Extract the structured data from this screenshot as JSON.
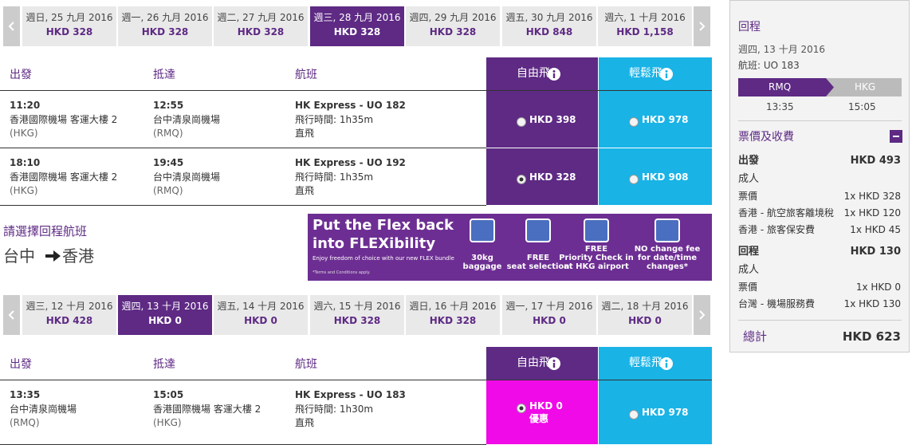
{
  "outbound_dates": {
    "selected": 3,
    "items": [
      {
        "date": "週日, 25 九月 2016",
        "price": "HKD 328"
      },
      {
        "date": "週一, 26 九月 2016",
        "price": "HKD 328"
      },
      {
        "date": "週二, 27 九月 2016",
        "price": "HKD 328"
      },
      {
        "date": "週三, 28 九月 2016",
        "price": "HKD 328"
      },
      {
        "date": "週四, 29 九月 2016",
        "price": "HKD 328"
      },
      {
        "date": "週五, 30 九月 2016",
        "price": "HKD 848"
      },
      {
        "date": "週六, 1 十月 2016",
        "price": "HKD 1,158"
      }
    ]
  },
  "outbound_table": {
    "headers": [
      "出發",
      "抵達",
      "航班",
      "自由飛",
      "輕鬆飛"
    ],
    "selected_fare": {
      "row": 1,
      "col": 0
    },
    "rows": [
      {
        "depart_time": "11:20",
        "depart_airport": "香港國際機場 客運大樓 2",
        "depart_code": "(HKG)",
        "arrive_time": "12:55",
        "arrive_airport": "台中清泉崗機場",
        "arrive_code": "(RMQ)",
        "flight": "HK Express - UO 182",
        "duration": "飛行時間: 1h35m",
        "stops": "直飛",
        "fares": [
          "HKD 398",
          "HKD 978"
        ]
      },
      {
        "depart_time": "18:10",
        "depart_airport": "香港國際機場 客運大樓 2",
        "depart_code": "(HKG)",
        "arrive_time": "19:45",
        "arrive_airport": "台中清泉崗機場",
        "arrive_code": "(RMQ)",
        "flight": "HK Express - UO 192",
        "duration": "飛行時間: 1h35m",
        "stops": "直飛",
        "fares": [
          "HKD 328",
          "HKD 908"
        ]
      }
    ]
  },
  "return_prompt": {
    "title": "請選擇回程航班",
    "origin": "台中",
    "destination": "香港"
  },
  "banner": {
    "headline": [
      "Put the Flex back",
      "into FLEXibility"
    ],
    "tagline": "Enjoy freedom of choice with our new FLEX bundle",
    "terms": "*Terms and Conditions apply.",
    "features": [
      [
        "30kg",
        "baggage"
      ],
      [
        "FREE",
        "seat selection"
      ],
      [
        "FREE",
        "Priority Check in",
        "at HKG airport"
      ],
      [
        "NO change fee",
        "for date/time",
        "changes*"
      ]
    ]
  },
  "return_dates": {
    "selected": 1,
    "items": [
      {
        "date": "週三, 12 十月 2016",
        "price": "HKD 428"
      },
      {
        "date": "週四, 13 十月 2016",
        "price": "HKD 0"
      },
      {
        "date": "週五, 14 十月 2016",
        "price": "HKD 0"
      },
      {
        "date": "週六, 15 十月 2016",
        "price": "HKD 328"
      },
      {
        "date": "週日, 16 十月 2016",
        "price": "HKD 328"
      },
      {
        "date": "週一, 17 十月 2016",
        "price": "HKD 0"
      },
      {
        "date": "週二, 18 十月 2016",
        "price": "HKD 0"
      }
    ]
  },
  "return_table": {
    "headers": [
      "出發",
      "抵達",
      "航班",
      "自由飛",
      "輕鬆飛"
    ],
    "selected_fare": {
      "row": 0,
      "col": 0
    },
    "rows": [
      {
        "depart_time": "13:35",
        "depart_airport": "台中清泉崗機場",
        "depart_code": "(RMQ)",
        "arrive_time": "15:05",
        "arrive_airport": "香港國際機場 客運大樓 2",
        "arrive_code": "(HKG)",
        "flight": "HK Express - UO 183",
        "duration": "飛行時間: 1h30m",
        "stops": "直飛",
        "fares": [
          "HKD 0",
          "HKD 978"
        ],
        "fare_note": "優惠"
      }
    ]
  },
  "summary": {
    "title": "回程",
    "date": "週四, 13 十月 2016",
    "flight": "航班: UO 183",
    "route": [
      "RMQ",
      "HKG"
    ],
    "times": [
      "13:35",
      "15:05"
    ],
    "fees_title": "票價及收費",
    "sections": [
      {
        "name": "出發",
        "total": "HKD 493",
        "passenger": "成人",
        "items": [
          {
            "label": "票價",
            "amount": "1x HKD 328"
          },
          {
            "label": "香港 - 航空旅客離境稅",
            "amount": "1x HKD 120"
          },
          {
            "label": "香港 - 旅客保安費",
            "amount": "1x HKD 45"
          }
        ]
      },
      {
        "name": "回程",
        "total": "HKD 130",
        "passenger": "成人",
        "items": [
          {
            "label": "票價",
            "amount": "1x HKD 0"
          },
          {
            "label": "台灣 - 機場服務費",
            "amount": "1x HKD 130"
          }
        ]
      }
    ],
    "total_label": "總計",
    "total": "HKD 623"
  }
}
